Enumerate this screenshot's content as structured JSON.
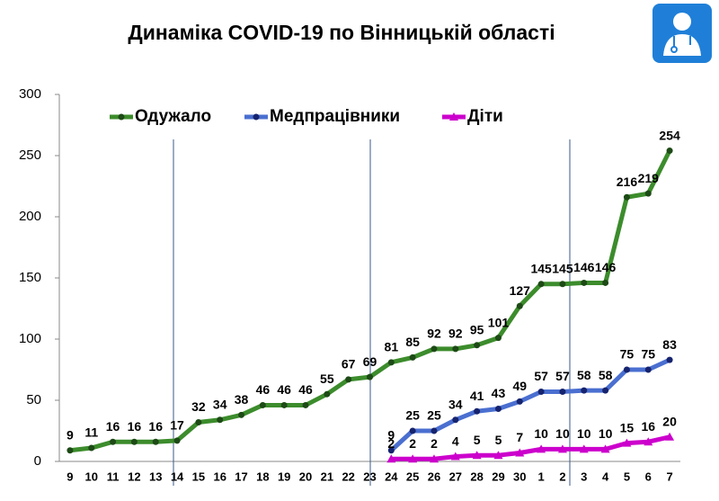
{
  "chart_data": {
    "type": "line",
    "title": "Динаміка COVID-19 по Вінницькій області",
    "categories": [
      "9",
      "10",
      "11",
      "12",
      "13",
      "14",
      "15",
      "16",
      "17",
      "18",
      "19",
      "20",
      "21",
      "22",
      "23",
      "24",
      "25",
      "26",
      "27",
      "28",
      "29",
      "30",
      "1",
      "2",
      "3",
      "4",
      "5",
      "6",
      "7"
    ],
    "series": [
      {
        "name": "Одужало",
        "color": "#3c8c2c",
        "marker": "circle",
        "values": [
          9,
          11,
          16,
          16,
          16,
          17,
          32,
          34,
          38,
          46,
          46,
          46,
          55,
          67,
          69,
          81,
          85,
          92,
          92,
          95,
          101,
          127,
          145,
          145,
          146,
          146,
          216,
          219,
          254
        ]
      },
      {
        "name": "Медпрацівники",
        "color": "#4a6fd0",
        "marker": "circle",
        "values": [
          null,
          null,
          null,
          null,
          null,
          null,
          null,
          null,
          null,
          null,
          null,
          null,
          null,
          null,
          null,
          9,
          25,
          25,
          34,
          41,
          43,
          49,
          57,
          57,
          58,
          58,
          75,
          75,
          83
        ]
      },
      {
        "name": "Діти",
        "color": "#cc00cc",
        "marker": "triangle",
        "values": [
          null,
          null,
          null,
          null,
          null,
          null,
          null,
          null,
          null,
          null,
          null,
          null,
          null,
          null,
          null,
          2,
          2,
          2,
          4,
          5,
          5,
          7,
          10,
          10,
          10,
          10,
          15,
          16,
          20
        ]
      }
    ],
    "ylim": [
      0,
      300
    ],
    "yticks": [
      0,
      50,
      100,
      150,
      200,
      250,
      300
    ],
    "grid": false,
    "legend": "top"
  }
}
